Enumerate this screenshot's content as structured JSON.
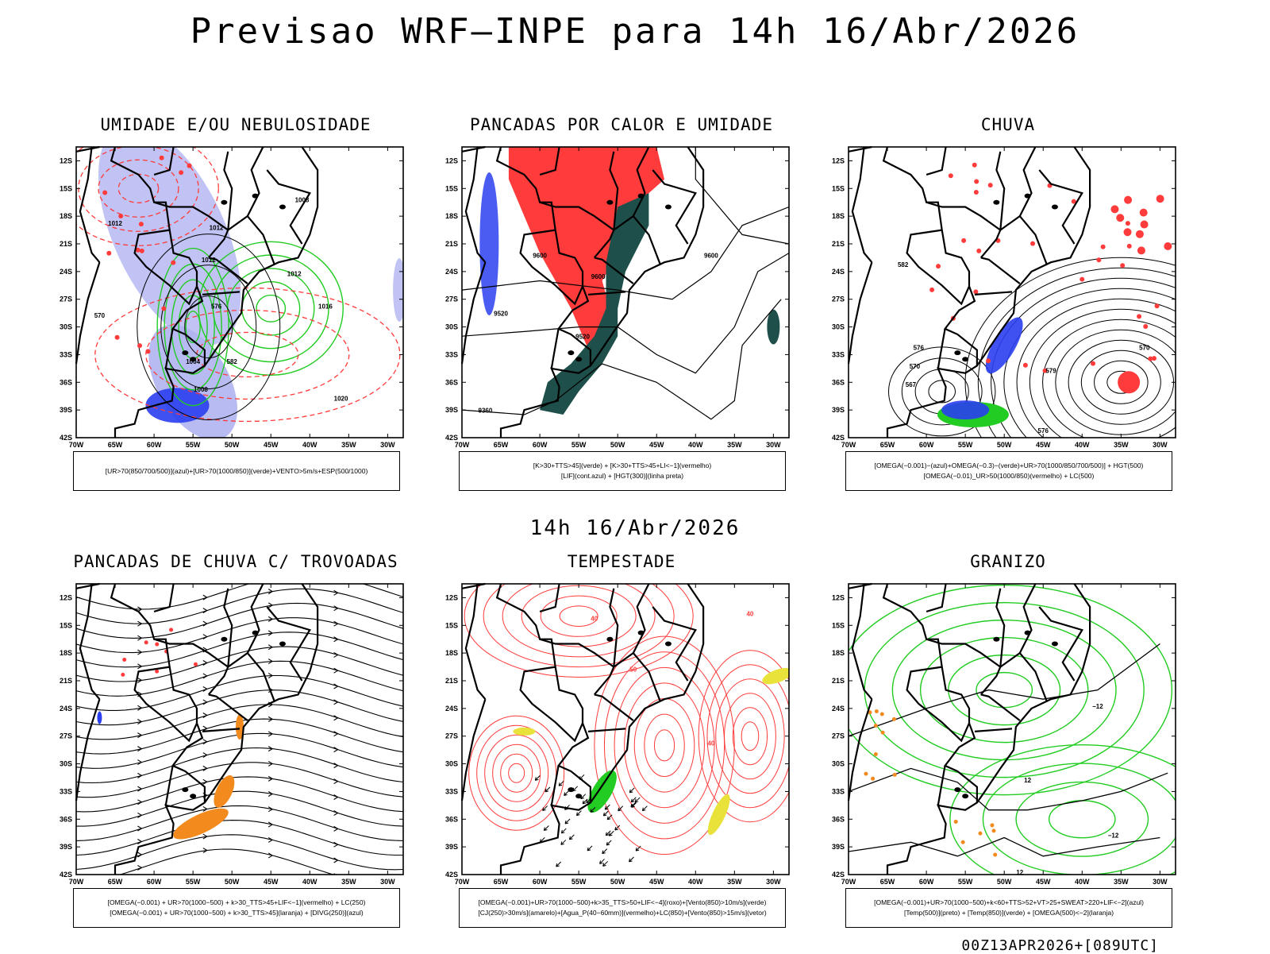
{
  "title": "Previsao WRF–INPE  para 14h 16/Abr/2026",
  "mid_time": "14h 16/Abr/2026",
  "footer": "00Z13APR2026+[089UTC]",
  "axes": {
    "lat_labels": [
      "12S",
      "15S",
      "18S",
      "21S",
      "24S",
      "27S",
      "30S",
      "33S",
      "36S",
      "39S",
      "42S"
    ],
    "lon_labels": [
      "70W",
      "65W",
      "60W",
      "55W",
      "50W",
      "45W",
      "40W",
      "35W",
      "30W"
    ]
  },
  "colors": {
    "red": "#ff3b3b",
    "green": "#22cc22",
    "blue": "#2a3ff0",
    "lightblue": "#b0b4f0",
    "dark_teal": "#1f4f4a",
    "orange": "#f28a1e",
    "yellow": "#e8e23a"
  },
  "panels": [
    {
      "id": "umidade",
      "title": "UMIDADE E/OU NEBULOSIDADE",
      "legend": [
        "[UR>70(850/700/500)](azul)+[UR>70(1000/850)](verde)+VENTO>5m/s+ESP(500/1000)"
      ],
      "contour_labels": [
        "1012",
        "1012",
        "1008",
        "1012",
        "1016",
        "1012",
        "1004",
        "1008",
        "1020",
        "570",
        "576",
        "582"
      ]
    },
    {
      "id": "pancadas_calor",
      "title": "PANCADAS POR CALOR E UMIDADE",
      "legend": [
        "[K>30+TTS>45](verde) + [K>30+TTS>45+LI<−1](vermelho)",
        "[LIF](cont.azul) + [HGT(300)](linha preta)"
      ],
      "contour_labels": [
        "9600",
        "9600",
        "9600",
        "9520",
        "9520",
        "9360"
      ]
    },
    {
      "id": "chuva",
      "title": "CHUVA",
      "legend": [
        "[OMEGA(−0.001)−(azul)+OMEGA(−0.3)−(verde)+UR>70(1000/850/700/500)] + HGT(500)",
        "[OMEGA(−0.01)_UR>50(1000/850)(vermelho) + LC(500)"
      ],
      "contour_labels": [
        "582",
        "576",
        "570",
        "567",
        "579",
        "570",
        "576"
      ]
    },
    {
      "id": "trovoadas",
      "title": "PANCADAS DE CHUVA C/ TROVOADAS",
      "legend": [
        "[OMEGA(−0.001) + UR>70(1000−500) + k>30_TTS>45+LIF<−1](vermelho) + LC(250)",
        "[OMEGA(−0.001) + UR>70(1000−500) + k>30_TTS>45](laranja) + [DIVG(250)](azul)"
      ],
      "contour_labels": []
    },
    {
      "id": "tempestade",
      "title": "TEMPESTADE",
      "legend": [
        "[OMEGA(−0.001)+UR>70(1000−500)+k>35_TTS>50+LIF<−4](roxo)+[Vento(850)>10m/s](verde)",
        "[CJ(250)>30m/s](amarelo)+[Agua_P(40−60mm)](vermelho)+LC(850)+[Vento(850)>15m/s](vetor)"
      ],
      "contour_labels": [
        "40",
        "40",
        "50",
        "40"
      ]
    },
    {
      "id": "granizo",
      "title": "GRANIZO",
      "legend": [
        "[OMEGA(−0.001)+UR>70(1000−500)+k<60+TTS>52+VT>25+SWEAT>220+LIF<−2](azul)",
        "[Temp(500)](preto) + [Temp(850)](verde) + [OMEGA(500)<−2](laranja)"
      ],
      "contour_labels": [
        "−12",
        "−12",
        "12",
        "12"
      ]
    }
  ]
}
